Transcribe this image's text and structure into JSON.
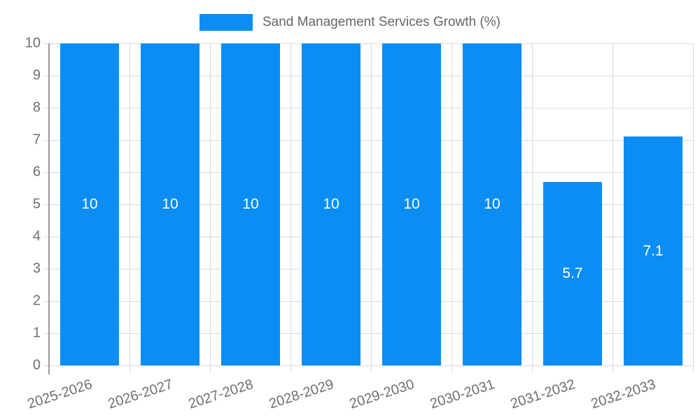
{
  "legend": {
    "label": "Sand Management Services Growth (%)"
  },
  "chart_data": {
    "type": "bar",
    "title": "",
    "categories": [
      "2025-2026",
      "2026-2027",
      "2027-2028",
      "2028-2029",
      "2029-2030",
      "2030-2031",
      "2031-2032",
      "2032-2033"
    ],
    "values": [
      10,
      10,
      10,
      10,
      10,
      10,
      5.7,
      7.1
    ],
    "value_labels": [
      "10",
      "10",
      "10",
      "10",
      "10",
      "10",
      "5.7",
      "7.1"
    ],
    "series_name": "Sand Management Services Growth (%)",
    "xlabel": "",
    "ylabel": "",
    "ylim": [
      0,
      10
    ],
    "yticks": [
      "0",
      "1",
      "2",
      "3",
      "4",
      "5",
      "6",
      "7",
      "8",
      "9",
      "10"
    ],
    "grid": true,
    "legend_position": "top",
    "x_label_rotation_deg": -18,
    "colors": {
      "bar": "#0b8df4",
      "gridline": "#d9d9d9",
      "axis_line": "#9a9a9a",
      "tick_label": "#6f6f6f",
      "legend_text": "#666666",
      "bar_value_label": "#ffffff",
      "background": "#ffffff"
    }
  }
}
